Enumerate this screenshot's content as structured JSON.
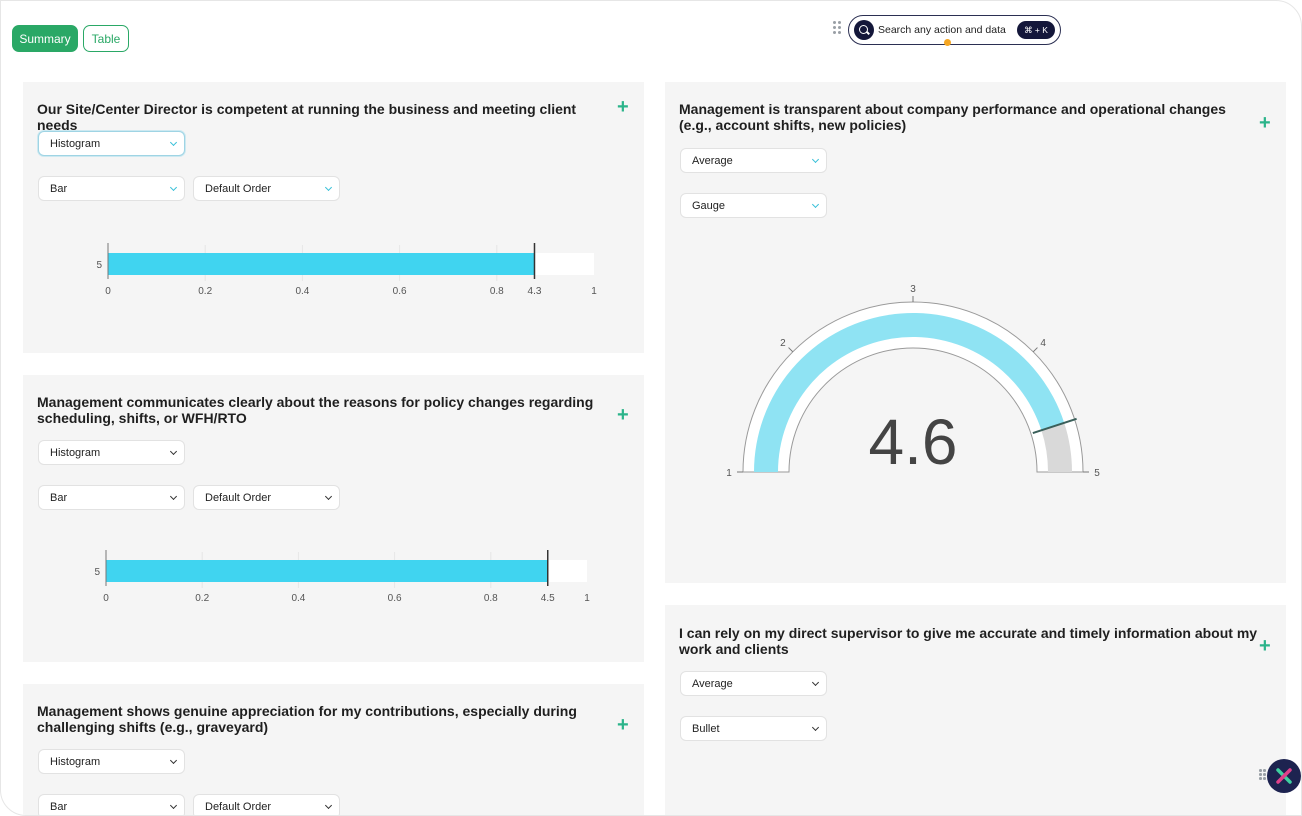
{
  "tabs": {
    "summary": "Summary",
    "table": "Table"
  },
  "search": {
    "placeholder": "Search any action and data",
    "shortcut": "⌘ + K"
  },
  "colors": {
    "accent": "#2aa866",
    "bar": "#40d4f0",
    "gauge": "#8fe3f3",
    "plus": "#2bb48a"
  },
  "cards": [
    {
      "title": "Our Site/Center Director is competent at running the business and meeting client needs",
      "view_select": "Histogram",
      "chart_select": "Bar",
      "order_select": "Default Order"
    },
    {
      "title": "Management communicates clearly about the reasons for policy changes regarding scheduling, shifts, or WFH/RTO",
      "view_select": "Histogram",
      "chart_select": "Bar",
      "order_select": "Default Order"
    },
    {
      "title": "Management shows genuine appreciation for my contributions, especially during challenging shifts (e.g., graveyard)",
      "view_select": "Histogram",
      "chart_select": "Bar",
      "order_select": "Default Order"
    },
    {
      "title": "Management is transparent about company performance and operational changes (e.g., account shifts, new policies)",
      "view_select": "Average",
      "chart_select": "Gauge"
    },
    {
      "title": "I can rely on my direct supervisor to give me accurate and timely information about my work and clients",
      "view_select": "Average",
      "chart_select": "Bullet"
    }
  ],
  "chart_data": [
    {
      "type": "bar",
      "orientation": "horizontal",
      "categories": [
        "5"
      ],
      "values": [
        4.3
      ],
      "x_ticks": [
        "0",
        "0.2",
        "0.4",
        "0.6",
        "0.8",
        "4.3",
        "1"
      ],
      "value_label": "4.3"
    },
    {
      "type": "bar",
      "orientation": "horizontal",
      "categories": [
        "5"
      ],
      "values": [
        4.5
      ],
      "x_ticks": [
        "0",
        "0.2",
        "0.4",
        "0.6",
        "0.8",
        "4.5",
        "1"
      ],
      "value_label": "4.5"
    },
    {
      "type": "gauge",
      "min": 1,
      "max": 5,
      "value": 4.6,
      "value_label": "4.6",
      "ticks": [
        "1",
        "2",
        "3",
        "4",
        "5"
      ]
    }
  ]
}
